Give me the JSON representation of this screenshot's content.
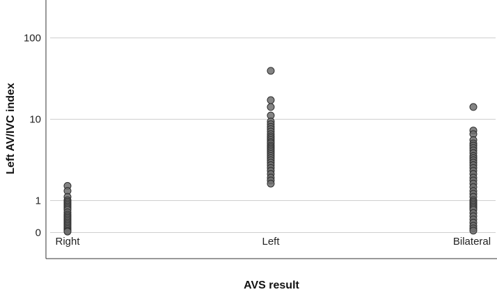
{
  "chart_data": {
    "type": "scatter",
    "xlabel": "AVS result",
    "ylabel": "Left AV/IVC index",
    "categories": [
      "Right",
      "Left",
      "Bilateral"
    ],
    "y_ticks": [
      0,
      1,
      10,
      100
    ],
    "y_tick_labels": [
      "0",
      "1",
      "10",
      "100"
    ],
    "y_scale": "symlog",
    "grid": true,
    "point_color": "#6f6f6f",
    "series": [
      {
        "category": "Right",
        "values": [
          1.5,
          1.3,
          1.1,
          1.0,
          0.95,
          0.9,
          0.85,
          0.8,
          0.75,
          0.7,
          0.62,
          0.55,
          0.5,
          0.45,
          0.4,
          0.35,
          0.3,
          0.25,
          0.2,
          0.15,
          0.1,
          0.05,
          0.02
        ]
      },
      {
        "category": "Left",
        "values": [
          39,
          17,
          14,
          11,
          9.3,
          8.6,
          8.0,
          7.5,
          7.0,
          6.5,
          6.1,
          5.8,
          5.5,
          5.2,
          5.0,
          4.7,
          4.5,
          4.3,
          4.1,
          3.9,
          3.7,
          3.5,
          3.3,
          3.1,
          2.9,
          2.7,
          2.5,
          2.3,
          2.1,
          1.9,
          1.75,
          1.6
        ]
      },
      {
        "category": "Bilateral",
        "values": [
          14,
          7.2,
          6.5,
          5.5,
          5.0,
          4.7,
          4.4,
          4.1,
          3.8,
          3.5,
          3.3,
          3.1,
          2.9,
          2.7,
          2.5,
          2.3,
          2.1,
          1.9,
          1.75,
          1.6,
          1.45,
          1.3,
          1.2,
          1.1,
          1.0,
          0.95,
          0.9,
          0.85,
          0.8,
          0.75,
          0.7,
          0.6,
          0.5,
          0.4,
          0.3,
          0.2,
          0.12,
          0.05
        ]
      }
    ]
  }
}
